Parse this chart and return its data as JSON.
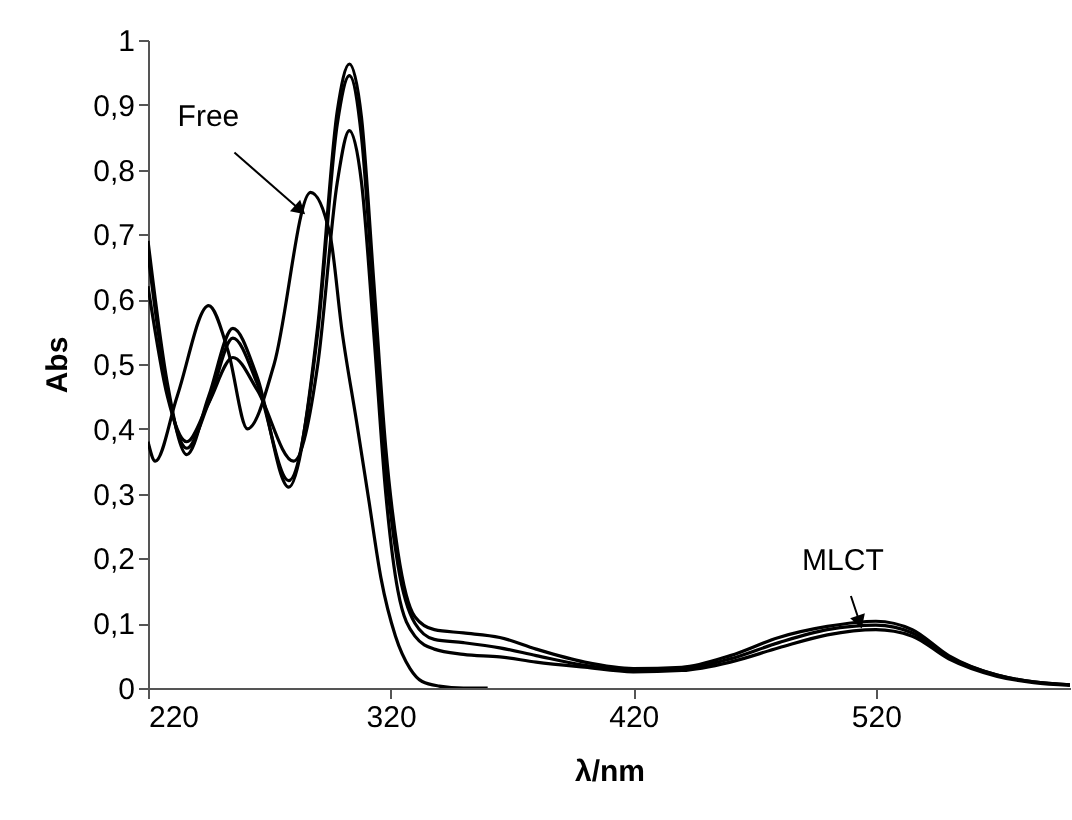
{
  "chart_data": {
    "type": "line",
    "xlabel": "λ/nm",
    "ylabel": "Abs",
    "xlim": [
      220,
      600
    ],
    "xticks": [
      220,
      320,
      420,
      520
    ],
    "ylim": [
      0,
      1
    ],
    "yticks": [
      {
        "value": 0,
        "label": "0"
      },
      {
        "value": 0.1,
        "label": "0,1"
      },
      {
        "value": 0.2,
        "label": "0,2"
      },
      {
        "value": 0.3,
        "label": "0,3"
      },
      {
        "value": 0.4,
        "label": "0,4"
      },
      {
        "value": 0.5,
        "label": "0,5"
      },
      {
        "value": 0.6,
        "label": "0,6"
      },
      {
        "value": 0.7,
        "label": "0,7"
      },
      {
        "value": 0.8,
        "label": "0,8"
      },
      {
        "value": 0.9,
        "label": "0,9"
      },
      {
        "value": 1,
        "label": "1"
      }
    ],
    "grid": false,
    "legend": false,
    "line_style": "solid",
    "annotations": [
      {
        "text": "Free",
        "x": 282,
        "y": 0.74
      },
      {
        "text": "MLCT",
        "x": 513,
        "y": 0.105
      }
    ],
    "series": [
      {
        "color": "#000000",
        "x": [
          220,
          223,
          232,
          245,
          253,
          261,
          272,
          287,
          295,
          300,
          306,
          311,
          316,
          322,
          328,
          333,
          340,
          350,
          360
        ],
        "values": [
          0.38,
          0.35,
          0.45,
          0.59,
          0.52,
          0.4,
          0.5,
          0.765,
          0.7,
          0.55,
          0.41,
          0.29,
          0.17,
          0.08,
          0.03,
          0.01,
          0.003,
          0,
          0
        ]
      },
      {
        "color": "#000000",
        "x": [
          220,
          228,
          236,
          245,
          255,
          265,
          280,
          290,
          298,
          303,
          308,
          313,
          318,
          323,
          330,
          338,
          350,
          365,
          380,
          400,
          420,
          440,
          460,
          480,
          500,
          520,
          535,
          550,
          570,
          600
        ],
        "values": [
          0.62,
          0.45,
          0.38,
          0.44,
          0.51,
          0.46,
          0.35,
          0.5,
          0.78,
          0.86,
          0.78,
          0.55,
          0.3,
          0.15,
          0.08,
          0.06,
          0.052,
          0.048,
          0.04,
          0.032,
          0.025,
          0.027,
          0.04,
          0.062,
          0.082,
          0.09,
          0.08,
          0.045,
          0.018,
          0.004
        ]
      },
      {
        "color": "#000000",
        "x": [
          220,
          228,
          236,
          245,
          255,
          265,
          278,
          290,
          298,
          303,
          308,
          313,
          318,
          323,
          330,
          338,
          350,
          365,
          380,
          400,
          420,
          440,
          460,
          480,
          500,
          520,
          535,
          550,
          570,
          600
        ],
        "values": [
          0.67,
          0.46,
          0.37,
          0.44,
          0.54,
          0.47,
          0.32,
          0.55,
          0.87,
          0.945,
          0.85,
          0.6,
          0.34,
          0.19,
          0.1,
          0.075,
          0.07,
          0.062,
          0.05,
          0.035,
          0.028,
          0.03,
          0.045,
          0.07,
          0.09,
          0.097,
          0.085,
          0.048,
          0.02,
          0.005
        ]
      },
      {
        "color": "#000000",
        "x": [
          220,
          228,
          236,
          245,
          255,
          265,
          278,
          290,
          298,
          303,
          308,
          313,
          318,
          323,
          330,
          338,
          350,
          365,
          380,
          400,
          420,
          440,
          460,
          480,
          500,
          520,
          535,
          550,
          570,
          600
        ],
        "values": [
          0.69,
          0.47,
          0.36,
          0.45,
          0.555,
          0.48,
          0.31,
          0.56,
          0.89,
          0.963,
          0.88,
          0.63,
          0.37,
          0.21,
          0.11,
          0.09,
          0.085,
          0.078,
          0.06,
          0.04,
          0.03,
          0.032,
          0.05,
          0.078,
          0.095,
          0.103,
          0.09,
          0.05,
          0.02,
          0.005
        ]
      }
    ]
  }
}
